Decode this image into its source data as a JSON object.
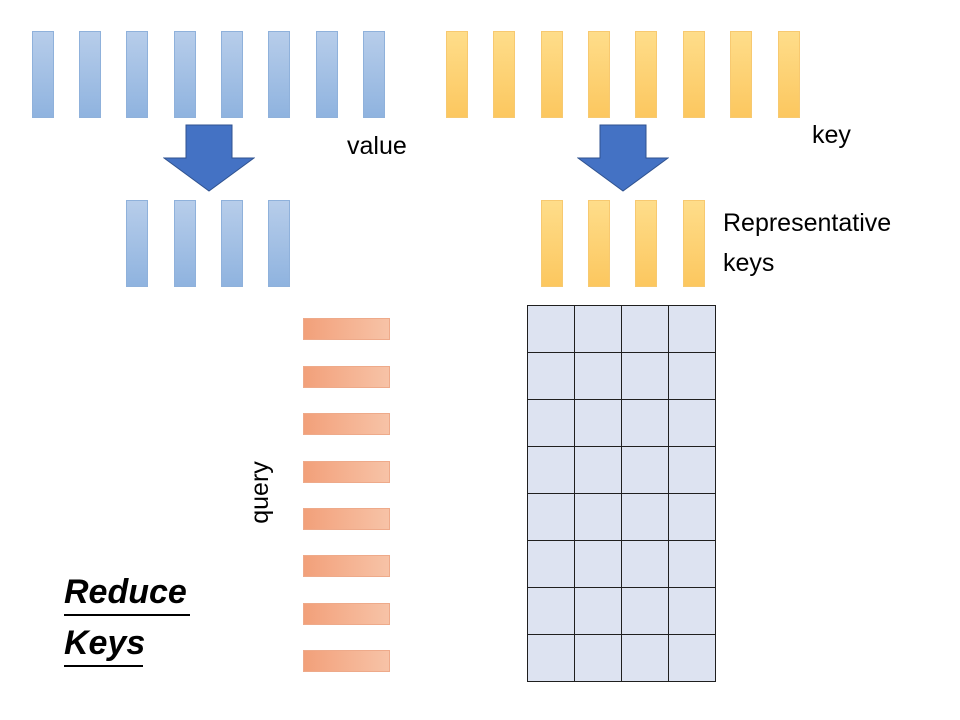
{
  "labels": {
    "value": "value",
    "key": "key",
    "representative_keys_line1": "Representative",
    "representative_keys_line2": "keys",
    "query": "query",
    "title_line1": "Reduce",
    "title_line2": "Keys"
  },
  "counts": {
    "value_bars": 8,
    "key_bars": 8,
    "reduced_value_bars": 4,
    "representative_key_bars": 4,
    "query_bars": 8,
    "grid_rows": 8,
    "grid_cols": 4
  },
  "colors": {
    "value_bar": "#9dbde4",
    "key_bar": "#fdd27a",
    "query_bar": "#f4ae8c",
    "arrow": "#4472c4",
    "grid_fill": "#dde3f1",
    "grid_line": "#1f1f1f"
  }
}
